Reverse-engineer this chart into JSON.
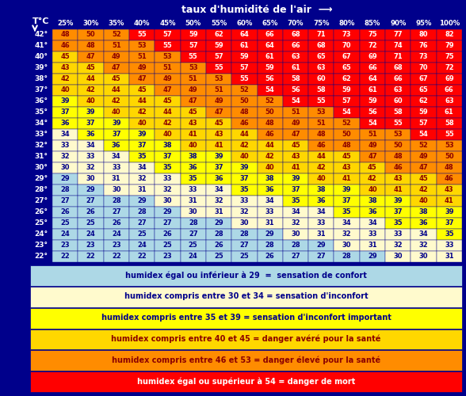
{
  "background_color": "#00008B",
  "title_humidity": "taux d'humidité de l'air  ⟶",
  "title_temp": "T°C",
  "humidity_labels": [
    "25%",
    "30%",
    "35%",
    "40%",
    "45%",
    "50%",
    "55%",
    "60%",
    "65%",
    "70%",
    "75%",
    "80%",
    "85%",
    "90%",
    "95%",
    "100%"
  ],
  "temp_labels": [
    "42°",
    "41°",
    "40°",
    "39°",
    "38°",
    "37°",
    "36°",
    "35°",
    "34°",
    "33°",
    "32°",
    "31°",
    "30°",
    "29°",
    "28°",
    "27°",
    "26°",
    "25°",
    "24°",
    "23°",
    "22°"
  ],
  "table": [
    [
      48,
      50,
      52,
      55,
      57,
      59,
      62,
      64,
      66,
      68,
      71,
      73,
      75,
      77,
      80,
      82
    ],
    [
      46,
      48,
      51,
      53,
      55,
      57,
      59,
      61,
      64,
      66,
      68,
      70,
      72,
      74,
      76,
      79
    ],
    [
      45,
      47,
      49,
      51,
      53,
      55,
      57,
      59,
      61,
      63,
      65,
      67,
      69,
      71,
      73,
      75
    ],
    [
      43,
      45,
      47,
      49,
      51,
      53,
      55,
      57,
      59,
      61,
      63,
      65,
      66,
      68,
      70,
      72
    ],
    [
      42,
      44,
      45,
      47,
      49,
      51,
      53,
      55,
      56,
      58,
      60,
      62,
      64,
      66,
      67,
      69
    ],
    [
      40,
      42,
      44,
      45,
      47,
      49,
      51,
      52,
      54,
      56,
      58,
      59,
      61,
      63,
      65,
      66
    ],
    [
      39,
      40,
      42,
      44,
      45,
      47,
      49,
      50,
      52,
      54,
      55,
      57,
      59,
      60,
      62,
      63
    ],
    [
      37,
      39,
      40,
      42,
      44,
      45,
      47,
      48,
      50,
      51,
      53,
      54,
      56,
      58,
      59,
      61
    ],
    [
      36,
      37,
      39,
      40,
      42,
      43,
      45,
      46,
      48,
      49,
      51,
      52,
      54,
      55,
      57,
      58
    ],
    [
      34,
      36,
      37,
      39,
      40,
      41,
      43,
      44,
      46,
      47,
      48,
      50,
      51,
      53,
      54,
      55
    ],
    [
      33,
      34,
      36,
      37,
      38,
      40,
      41,
      42,
      44,
      45,
      46,
      48,
      49,
      50,
      52,
      53
    ],
    [
      32,
      33,
      34,
      35,
      37,
      38,
      39,
      40,
      42,
      43,
      44,
      45,
      47,
      48,
      49,
      50
    ],
    [
      30,
      32,
      33,
      34,
      35,
      36,
      37,
      39,
      40,
      41,
      42,
      43,
      45,
      46,
      47,
      48
    ],
    [
      29,
      30,
      31,
      32,
      33,
      35,
      36,
      37,
      38,
      39,
      40,
      41,
      42,
      43,
      45,
      46
    ],
    [
      28,
      29,
      30,
      31,
      32,
      33,
      34,
      35,
      36,
      37,
      38,
      39,
      40,
      41,
      42,
      43
    ],
    [
      27,
      27,
      28,
      29,
      30,
      31,
      32,
      33,
      34,
      35,
      36,
      37,
      38,
      39,
      40,
      41
    ],
    [
      26,
      26,
      27,
      28,
      29,
      30,
      31,
      32,
      33,
      34,
      34,
      35,
      36,
      37,
      38,
      39
    ],
    [
      25,
      25,
      26,
      27,
      27,
      28,
      29,
      30,
      31,
      32,
      33,
      34,
      34,
      35,
      36,
      37
    ],
    [
      24,
      24,
      24,
      25,
      26,
      27,
      28,
      28,
      29,
      30,
      31,
      32,
      33,
      33,
      34,
      35
    ],
    [
      23,
      23,
      23,
      24,
      25,
      25,
      26,
      27,
      28,
      28,
      29,
      30,
      31,
      32,
      32,
      33
    ],
    [
      22,
      22,
      22,
      22,
      23,
      24,
      25,
      25,
      26,
      27,
      27,
      28,
      29,
      30,
      30,
      31
    ]
  ],
  "legend_rows": [
    {
      "text": "humidex égal ou inférieur à 29  =  sensation de confort",
      "bg": "#ADD8E6",
      "fg": "#00008B"
    },
    {
      "text": "humidex compris entre 30 et 34 = sensation d'inconfort",
      "bg": "#FFFACD",
      "fg": "#00008B"
    },
    {
      "text": "humidex compris entre 35 et 39 = sensation d'inconfort important",
      "bg": "#FFFF00",
      "fg": "#00008B"
    },
    {
      "text": "humidex compris entre 40 et 45 = danger avéré pour la santé",
      "bg": "#FFD700",
      "fg": "#8B0000"
    },
    {
      "text": "humidex compris entre 46 et 53 = danger élevé pour la santé",
      "bg": "#FF8C00",
      "fg": "#8B0000"
    },
    {
      "text": "humidex égal ou supérieur à 54 = danger de mort",
      "bg": "#FF0000",
      "fg": "#FFFFFF"
    }
  ]
}
